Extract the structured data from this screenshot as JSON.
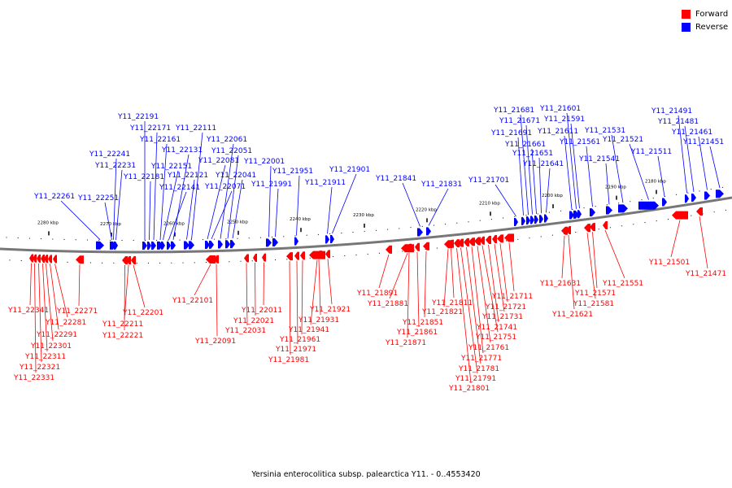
{
  "caption": "Yersinia enterocolitica subsp. palearctica Y11. - 0..4553420",
  "legend": [
    {
      "label": "Forward",
      "color": "#ff0000"
    },
    {
      "label": "Reverse",
      "color": "#0000ff"
    }
  ],
  "colors": {
    "forward": "#ff0000",
    "reverse": "#0000ff",
    "backbone": "#777777"
  },
  "scale_labels": [
    "2280 kbp",
    "2270 kbp",
    "2260 kbp",
    "2250 kbp",
    "2240 kbp",
    "2230 kbp",
    "2220 kbp",
    "2210 kbp",
    "2200 kbp",
    "2190 kbp",
    "2180 kbp"
  ],
  "reverse_genes": [
    "Y11_22261",
    "Y11_22251",
    "Y11_22241",
    "Y11_22231",
    "Y11_22191",
    "Y11_22181",
    "Y11_22171",
    "Y11_22161",
    "Y11_22151",
    "Y11_22141",
    "Y11_22131",
    "Y11_22121",
    "Y11_22111",
    "Y11_22081",
    "Y11_22071",
    "Y11_22061",
    "Y11_22051",
    "Y11_22041",
    "Y11_22001",
    "Y11_21991",
    "Y11_21951",
    "Y11_21911",
    "Y11_21901",
    "Y11_21841",
    "Y11_21831",
    "Y11_21701",
    "Y11_21691",
    "Y11_21681",
    "Y11_21671",
    "Y11_21661",
    "Y11_21651",
    "Y11_21641",
    "Y11_21611",
    "Y11_21601",
    "Y11_21591",
    "Y11_21561",
    "Y11_21541",
    "Y11_21531",
    "Y11_21521",
    "Y11_21511",
    "Y11_21491",
    "Y11_21481",
    "Y11_21461",
    "Y11_21451"
  ],
  "forward_genes": [
    "Y11_22341",
    "Y11_22331",
    "Y11_22321",
    "Y11_22311",
    "Y11_22301",
    "Y11_22291",
    "Y11_22281",
    "Y11_22271",
    "Y11_22221",
    "Y11_22211",
    "Y11_22201",
    "Y11_22101",
    "Y11_22091",
    "Y11_22031",
    "Y11_22021",
    "Y11_22011",
    "Y11_21981",
    "Y11_21971",
    "Y11_21961",
    "Y11_21941",
    "Y11_21931",
    "Y11_21921",
    "Y11_21891",
    "Y11_21881",
    "Y11_21871",
    "Y11_21861",
    "Y11_21851",
    "Y11_21821",
    "Y11_21811",
    "Y11_21801",
    "Y11_21791",
    "Y11_21781",
    "Y11_21771",
    "Y11_21761",
    "Y11_21751",
    "Y11_21741",
    "Y11_21731",
    "Y11_21721",
    "Y11_21711",
    "Y11_21631",
    "Y11_21621",
    "Y11_21581",
    "Y11_21571",
    "Y11_21551",
    "Y11_21501",
    "Y11_21471"
  ]
}
